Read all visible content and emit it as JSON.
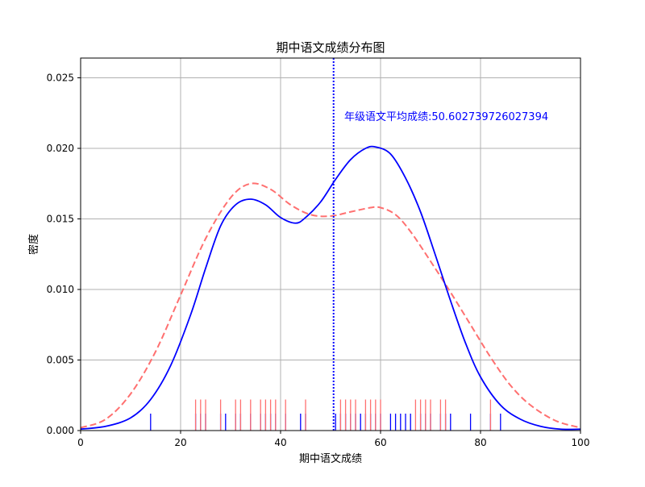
{
  "chart_data": {
    "type": "line",
    "title": "期中语文成绩分布图",
    "xlabel": "期中语文成绩",
    "ylabel": "密度",
    "xlim": [
      0,
      100
    ],
    "ylim": [
      0,
      0.0264
    ],
    "xticks": [
      "0",
      "20",
      "40",
      "60",
      "80",
      "100"
    ],
    "yticks": [
      "0.000",
      "0.005",
      "0.010",
      "0.015",
      "0.020",
      "0.025"
    ],
    "grid": true,
    "annotation": "年级语文平均成绩:50.602739726027394",
    "mean_line": {
      "x": 50.602739726027394,
      "color": "#0000ff",
      "style": "dotted"
    },
    "series": [
      {
        "color": "#0000ff",
        "style": "solid",
        "x": [
          0,
          5,
          10,
          14,
          18,
          22,
          25,
          28,
          31,
          34,
          37,
          40,
          43,
          45,
          48,
          51,
          54,
          57,
          59,
          62,
          65,
          68,
          71,
          74,
          77,
          80,
          84,
          88,
          92,
          96,
          100
        ],
        "y": [
          0.0001,
          0.0003,
          0.0009,
          0.0022,
          0.0046,
          0.0082,
          0.0115,
          0.0145,
          0.016,
          0.0164,
          0.016,
          0.0151,
          0.0147,
          0.0151,
          0.0162,
          0.0178,
          0.0192,
          0.02,
          0.0201,
          0.0196,
          0.0179,
          0.0155,
          0.0124,
          0.0092,
          0.0062,
          0.0038,
          0.0018,
          0.0008,
          0.0003,
          0.0001,
          0.0001
        ]
      },
      {
        "color": "#ff7070",
        "style": "dashed",
        "x": [
          0,
          5,
          10,
          15,
          20,
          25,
          30,
          34,
          38,
          42,
          46,
          50,
          54,
          58,
          60,
          63,
          66,
          70,
          74,
          78,
          82,
          86,
          90,
          95,
          100
        ],
        "y": [
          0.0002,
          0.0008,
          0.0026,
          0.0056,
          0.0096,
          0.0136,
          0.0165,
          0.0175,
          0.0171,
          0.016,
          0.0153,
          0.0152,
          0.0155,
          0.0158,
          0.0158,
          0.0153,
          0.0141,
          0.012,
          0.0098,
          0.0075,
          0.0052,
          0.0032,
          0.0018,
          0.0007,
          0.0002
        ]
      }
    ],
    "rugs": [
      {
        "color": "#0000ff",
        "height": 0.0012,
        "x": [
          14,
          23,
          24,
          25,
          28,
          29,
          31,
          32,
          34,
          36,
          37,
          38,
          39,
          41,
          44,
          45,
          51,
          52,
          53,
          54,
          55,
          56,
          57,
          58,
          59,
          60,
          62,
          63,
          64,
          65,
          66,
          68,
          69,
          70,
          72,
          73,
          74,
          78,
          82,
          84
        ]
      },
      {
        "color": "#ff7070",
        "height": 0.0022,
        "x": [
          23,
          24,
          25,
          28,
          31,
          32,
          34,
          36,
          37,
          38,
          39,
          41,
          45,
          52,
          53,
          54,
          55,
          57,
          58,
          59,
          60,
          67,
          68,
          69,
          70,
          72,
          73,
          82
        ]
      }
    ]
  }
}
